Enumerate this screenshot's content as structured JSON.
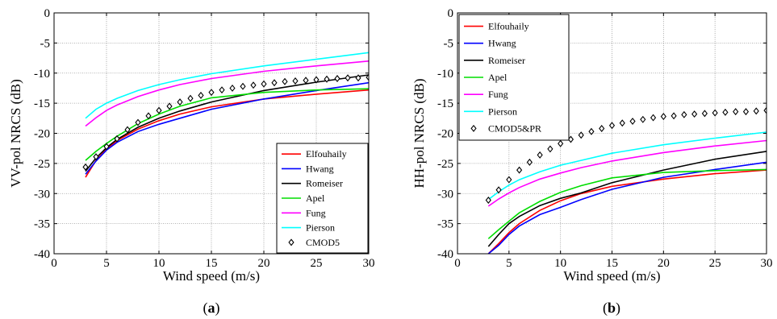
{
  "chart_data": [
    {
      "type": "line",
      "caption": "(a)",
      "caption_letter": "a",
      "xlabel": "Wind speed (m/s)",
      "ylabel": "VV-pol NRCS (dB)",
      "xlim": [
        0,
        30
      ],
      "ylim": [
        -40,
        0
      ],
      "xticks": [
        0,
        5,
        10,
        15,
        20,
        25,
        30
      ],
      "yticks": [
        0,
        -5,
        -10,
        -15,
        -20,
        -25,
        -30,
        -35,
        -40
      ],
      "grid": true,
      "legend_position": "lower-right",
      "series": [
        {
          "name": "Elfouhaily",
          "color": "#ff0000",
          "x": [
            3,
            4,
            5,
            6,
            8,
            10,
            12,
            15,
            20,
            25,
            30
          ],
          "values": [
            -27.3,
            -24.5,
            -22.6,
            -21.2,
            -19.3,
            -17.9,
            -16.8,
            -15.6,
            -14.3,
            -13.5,
            -12.8
          ]
        },
        {
          "name": "Hwang",
          "color": "#0000ff",
          "x": [
            3,
            4,
            5,
            6,
            8,
            10,
            12,
            15,
            20,
            25,
            30
          ],
          "values": [
            -26.8,
            -24.6,
            -22.8,
            -21.5,
            -19.7,
            -18.5,
            -17.5,
            -16.0,
            -14.3,
            -12.9,
            -11.6
          ]
        },
        {
          "name": "Romeiser",
          "color": "#000000",
          "x": [
            3,
            4,
            5,
            6,
            8,
            10,
            12,
            15,
            20,
            25,
            30
          ],
          "values": [
            -26.3,
            -24.1,
            -22.4,
            -21.0,
            -19.0,
            -17.5,
            -16.3,
            -14.8,
            -12.9,
            -11.5,
            -10.3
          ]
        },
        {
          "name": "Apel",
          "color": "#00dd00",
          "x": [
            3,
            4,
            5,
            6,
            8,
            10,
            12,
            15,
            20,
            25,
            30
          ],
          "values": [
            -24.5,
            -23.0,
            -21.7,
            -20.5,
            -18.4,
            -16.8,
            -15.5,
            -14.1,
            -13.2,
            -12.8,
            -12.6
          ]
        },
        {
          "name": "Fung",
          "color": "#ff00ff",
          "x": [
            3,
            4,
            5,
            6,
            8,
            10,
            12,
            15,
            20,
            25,
            30
          ],
          "values": [
            -18.8,
            -17.4,
            -16.2,
            -15.3,
            -13.9,
            -12.8,
            -11.9,
            -10.9,
            -9.7,
            -8.8,
            -8.0
          ]
        },
        {
          "name": "Pierson",
          "color": "#00ffff",
          "x": [
            3,
            4,
            5,
            6,
            8,
            10,
            12,
            15,
            20,
            25,
            30
          ],
          "values": [
            -17.5,
            -16.0,
            -15.0,
            -14.2,
            -12.9,
            -11.9,
            -11.1,
            -10.1,
            -8.8,
            -7.7,
            -6.6
          ]
        },
        {
          "name": "CMOD5",
          "color": "#000000",
          "marker": "diamond",
          "x": [
            3,
            4,
            5,
            6,
            7,
            8,
            9,
            10,
            11,
            12,
            13,
            14,
            15,
            16,
            17,
            18,
            19,
            20,
            21,
            22,
            23,
            24,
            25,
            26,
            27,
            28,
            29,
            30
          ],
          "values": [
            -25.6,
            -23.9,
            -22.2,
            -20.9,
            -19.4,
            -18.2,
            -17.1,
            -16.2,
            -15.5,
            -14.8,
            -14.2,
            -13.7,
            -13.2,
            -12.8,
            -12.5,
            -12.2,
            -12.0,
            -11.8,
            -11.6,
            -11.4,
            -11.3,
            -11.2,
            -11.1,
            -11.0,
            -10.9,
            -10.8,
            -10.8,
            -10.7
          ]
        }
      ]
    },
    {
      "type": "line",
      "caption": "(b)",
      "caption_letter": "b",
      "xlabel": "Wind speed (m/s)",
      "ylabel": "HH-pol NRCS (dB)",
      "xlim": [
        0,
        30
      ],
      "ylim": [
        -40,
        0
      ],
      "xticks": [
        0,
        5,
        10,
        15,
        20,
        25,
        30
      ],
      "yticks": [
        0,
        -5,
        -10,
        -15,
        -20,
        -25,
        -30,
        -35,
        -40
      ],
      "grid": true,
      "legend_position": "upper-left",
      "series": [
        {
          "name": "Elfouhaily",
          "color": "#ff0000",
          "x": [
            3,
            4,
            5,
            6,
            8,
            10,
            12,
            15,
            20,
            25,
            30
          ],
          "values": [
            -40.0,
            -38.3,
            -36.5,
            -35.0,
            -32.8,
            -31.2,
            -30.0,
            -28.8,
            -27.6,
            -26.7,
            -26.1
          ]
        },
        {
          "name": "Hwang",
          "color": "#0000ff",
          "x": [
            3,
            4,
            5,
            6,
            8,
            10,
            12,
            15,
            20,
            25,
            30
          ],
          "values": [
            -40.0,
            -38.6,
            -36.8,
            -35.4,
            -33.5,
            -32.3,
            -31.0,
            -29.3,
            -27.3,
            -26.0,
            -24.8
          ]
        },
        {
          "name": "Romeiser",
          "color": "#000000",
          "x": [
            3,
            4,
            5,
            6,
            8,
            10,
            12,
            15,
            20,
            25,
            30
          ],
          "values": [
            -38.8,
            -36.8,
            -35.0,
            -33.8,
            -32.0,
            -30.8,
            -29.9,
            -28.2,
            -26.1,
            -24.3,
            -23.0
          ]
        },
        {
          "name": "Apel",
          "color": "#00dd00",
          "x": [
            3,
            4,
            5,
            6,
            8,
            10,
            12,
            15,
            20,
            25,
            30
          ],
          "values": [
            -37.5,
            -36.0,
            -34.6,
            -33.2,
            -31.3,
            -29.8,
            -28.7,
            -27.4,
            -26.5,
            -26.2,
            -26.0
          ]
        },
        {
          "name": "Fung",
          "color": "#ff00ff",
          "x": [
            3,
            4,
            5,
            6,
            8,
            10,
            12,
            15,
            20,
            25,
            30
          ],
          "values": [
            -32.1,
            -30.9,
            -29.9,
            -29.0,
            -27.6,
            -26.6,
            -25.7,
            -24.6,
            -23.2,
            -22.1,
            -21.2
          ]
        },
        {
          "name": "Pierson",
          "color": "#00ffff",
          "x": [
            3,
            4,
            5,
            6,
            8,
            10,
            12,
            15,
            20,
            25,
            30
          ],
          "values": [
            -31.0,
            -29.7,
            -28.6,
            -27.7,
            -26.4,
            -25.3,
            -24.5,
            -23.3,
            -21.9,
            -20.8,
            -19.8
          ]
        },
        {
          "name": "CMOD5&PR",
          "color": "#000000",
          "marker": "diamond",
          "x": [
            3,
            4,
            5,
            6,
            7,
            8,
            9,
            10,
            11,
            12,
            13,
            14,
            15,
            16,
            17,
            18,
            19,
            20,
            21,
            22,
            23,
            24,
            25,
            26,
            27,
            28,
            29,
            30
          ],
          "values": [
            -31.1,
            -29.4,
            -27.7,
            -26.1,
            -24.8,
            -23.6,
            -22.6,
            -21.7,
            -21.0,
            -20.3,
            -19.7,
            -19.2,
            -18.7,
            -18.3,
            -18.0,
            -17.7,
            -17.4,
            -17.2,
            -17.1,
            -16.9,
            -16.8,
            -16.7,
            -16.6,
            -16.5,
            -16.4,
            -16.4,
            -16.3,
            -16.2
          ]
        }
      ]
    }
  ]
}
